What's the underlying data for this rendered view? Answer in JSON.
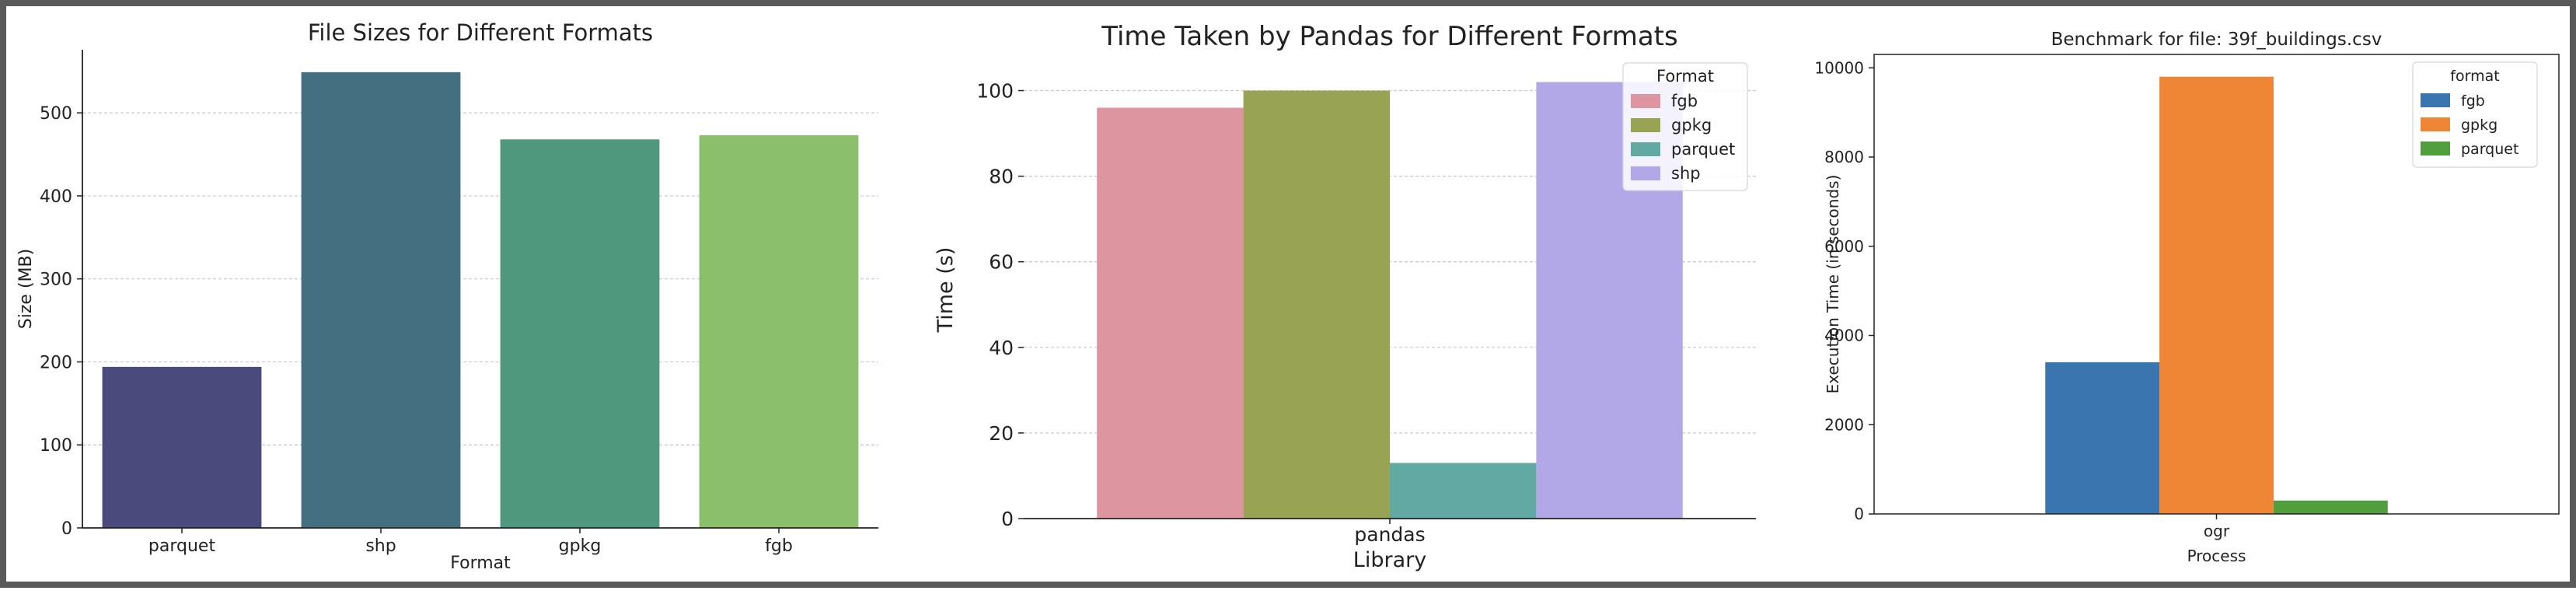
{
  "chart_data": [
    {
      "type": "bar",
      "title": "File Sizes for Different Formats",
      "xlabel": "Format",
      "ylabel": "Size (MB)",
      "categories": [
        "parquet",
        "shp",
        "gpkg",
        "fgb"
      ],
      "values": [
        194,
        549,
        468,
        473
      ],
      "colors": [
        "#4a4a7d",
        "#436f81",
        "#4f977d",
        "#8cbf6c"
      ],
      "yticks": [
        0,
        100,
        200,
        300,
        400,
        500
      ],
      "ylim": [
        0,
        576
      ],
      "grid": true
    },
    {
      "type": "bar",
      "title": "Time Taken by Pandas for Different Formats",
      "xlabel": "Library",
      "ylabel": "Time (s)",
      "categories": [
        "pandas"
      ],
      "legend_title": "Format",
      "legend_position": "top-right",
      "series": [
        {
          "name": "fgb",
          "values": [
            96
          ],
          "color": "#dd96a0"
        },
        {
          "name": "gpkg",
          "values": [
            100
          ],
          "color": "#98a453"
        },
        {
          "name": "parquet",
          "values": [
            13
          ],
          "color": "#62a9a4"
        },
        {
          "name": "shp",
          "values": [
            102
          ],
          "color": "#b2a7e7"
        }
      ],
      "yticks": [
        0,
        20,
        40,
        60,
        80,
        100
      ],
      "ylim": [
        0,
        107
      ],
      "grid": true
    },
    {
      "type": "bar",
      "title": "Benchmark for file: 39f_buildings.csv",
      "xlabel": "Process",
      "ylabel": "Execution Time (in seconds)",
      "categories": [
        "ogr"
      ],
      "legend_title": "format",
      "legend_position": "top-right",
      "series": [
        {
          "name": "fgb",
          "values": [
            3400
          ],
          "color": "#3b75af"
        },
        {
          "name": "gpkg",
          "values": [
            9800
          ],
          "color": "#ef8636"
        },
        {
          "name": "parquet",
          "values": [
            300
          ],
          "color": "#519e3e"
        }
      ],
      "yticks": [
        0,
        2000,
        4000,
        6000,
        8000,
        10000
      ],
      "ylim": [
        0,
        10300
      ],
      "grid": false
    }
  ]
}
